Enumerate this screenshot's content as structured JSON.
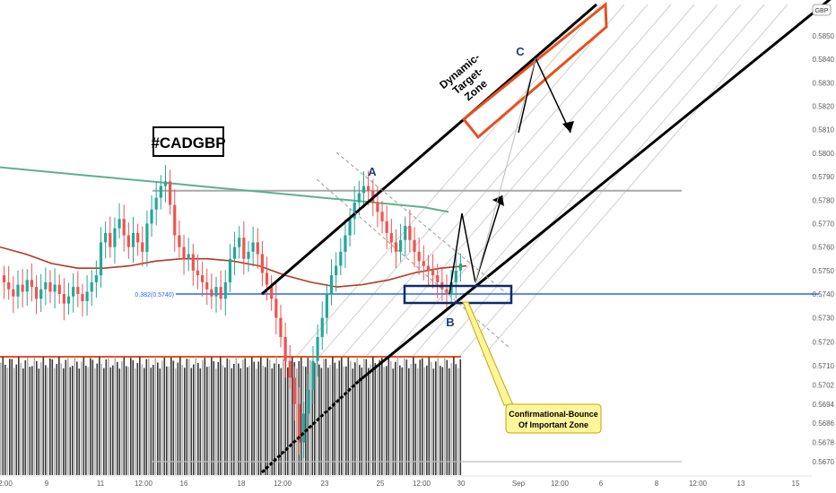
{
  "chart_data": {
    "type": "candlestick",
    "symbol": "#CADGBP",
    "currency_badge": "GBP",
    "y_axis": {
      "ticks": [
        0.585,
        0.584,
        0.583,
        0.582,
        0.581,
        0.58,
        0.579,
        0.578,
        0.577,
        0.576,
        0.575,
        0.574,
        0.573,
        0.572,
        0.571,
        0.5702,
        0.5694,
        0.5686,
        0.5678,
        0.567
      ],
      "tick_labels": [
        "0.5850",
        "0.5840",
        "0.5830",
        "0.5820",
        "0.5810",
        "0.5800",
        "0.5790",
        "0.5780",
        "0.5770",
        "0.5760",
        "0.5750",
        "0.5740",
        "0.5730",
        "0.5720",
        "0.5710",
        "0.5702",
        "0.5694",
        "0.5686",
        "0.5678",
        "0.5670"
      ]
    },
    "x_axis": {
      "tick_labels": [
        "2:00",
        "9",
        "11",
        "12:00",
        "16",
        "18",
        "12:00",
        "23",
        "25",
        "12:00",
        "30",
        "Sep",
        "12:00",
        "6",
        "8",
        "12:00",
        "13",
        "15"
      ]
    },
    "price_series": {
      "name": "CADGBP",
      "close": [
        0.5745,
        0.5742,
        0.5739,
        0.5744,
        0.5741,
        0.5746,
        0.5743,
        0.5738,
        0.5742,
        0.5745,
        0.5741,
        0.5744,
        0.574,
        0.5736,
        0.5739,
        0.5743,
        0.574,
        0.5737,
        0.5741,
        0.5745,
        0.5748,
        0.5762,
        0.5766,
        0.576,
        0.5768,
        0.5772,
        0.5765,
        0.576,
        0.5766,
        0.5762,
        0.5758,
        0.577,
        0.5776,
        0.5781,
        0.5786,
        0.5788,
        0.5778,
        0.5765,
        0.576,
        0.5755,
        0.5757,
        0.575,
        0.5748,
        0.5745,
        0.5742,
        0.5739,
        0.5743,
        0.5738,
        0.5745,
        0.5755,
        0.576,
        0.5764,
        0.5755,
        0.5758,
        0.5762,
        0.5757,
        0.5749,
        0.5744,
        0.5738,
        0.573,
        0.5722,
        0.5712,
        0.5705,
        0.5694,
        0.5678,
        0.569,
        0.57,
        0.5712,
        0.5722,
        0.573,
        0.574,
        0.5748,
        0.5752,
        0.5758,
        0.5765,
        0.5772,
        0.5779,
        0.5783,
        0.5786,
        0.5784,
        0.5779,
        0.5775,
        0.5771,
        0.5766,
        0.5762,
        0.5758,
        0.5763,
        0.5769,
        0.5763,
        0.5758,
        0.5754,
        0.5752,
        0.575,
        0.5748,
        0.5745,
        0.5742,
        0.574,
        0.5745,
        0.575,
        0.5753
      ]
    },
    "moving_averages": [
      {
        "color": "#5fb08f",
        "values": [
          0.5794,
          0.5793,
          0.5792,
          0.5791,
          0.579,
          0.5789,
          0.5788,
          0.5787,
          0.5786,
          0.5785,
          0.5784,
          0.5783,
          0.5782,
          0.5781,
          0.578,
          0.5779,
          0.5778,
          0.5777,
          0.5775
        ]
      },
      {
        "color": "#b5371e",
        "values": [
          0.576,
          0.5757,
          0.5753,
          0.5751,
          0.5751,
          0.5752,
          0.5754,
          0.5755,
          0.5755,
          0.5754,
          0.5752,
          0.5748,
          0.5745,
          0.5743,
          0.5744,
          0.5746,
          0.5749,
          0.5751,
          0.5752
        ]
      }
    ],
    "horizontal_levels": [
      {
        "value": 0.5784,
        "color": "#a9a9a9"
      },
      {
        "value": 0.574,
        "color": "#2962ff",
        "label": "0.382(0.5740)"
      },
      {
        "value": 0.567,
        "color": "#bdbdbd"
      }
    ],
    "annotations": {
      "title": "#CADGBP",
      "point_a": "A",
      "point_b": "B",
      "point_c": "C",
      "target_zone": [
        "Dynamic-",
        "Target-",
        "Zone"
      ],
      "callout": [
        "Confirmational-Bounce",
        "Of Important Zone"
      ]
    },
    "colors": {
      "up_candle": "#26a69a",
      "down_candle": "#ef5350",
      "channel": "#000000",
      "target_box": "#e8501e",
      "support_box": "#0d2a6b",
      "callout_bg": "#fff59d",
      "callout_border": "#c9a400",
      "volume_up": "#b0b0b0",
      "volume_down": "#3a3a3a"
    }
  }
}
